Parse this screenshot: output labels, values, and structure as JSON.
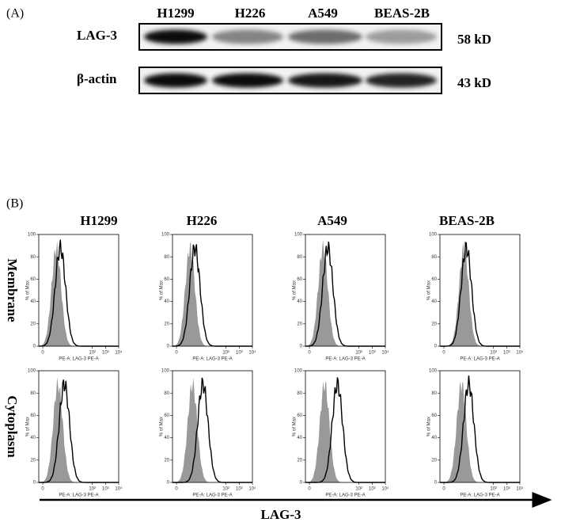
{
  "panel_a": {
    "label": "(A)",
    "cell_lines": [
      "H1299",
      "H226",
      "A549",
      "BEAS-2B"
    ],
    "rows": [
      {
        "name": "LAG-3",
        "size": "58 kD"
      },
      {
        "name": "β-actin",
        "size": "43 kD"
      }
    ]
  },
  "panel_b": {
    "label": "(B)",
    "cell_lines": [
      "H1299",
      "H226",
      "A549",
      "BEAS-2B"
    ],
    "rows": [
      "Membrane",
      "Cytoplasm"
    ],
    "y_axis_label": "% of Max",
    "yticks": [
      0,
      20,
      40,
      60,
      80,
      100
    ],
    "x_axis_label": "PE-A: LAG-3 PE-A",
    "xticks": [
      0,
      {
        "value": 100,
        "label": "10²"
      },
      {
        "value": 1000,
        "label": "10³"
      },
      {
        "value": 10000,
        "label": "10⁴"
      }
    ],
    "arrow_label": "LAG-3"
  }
}
